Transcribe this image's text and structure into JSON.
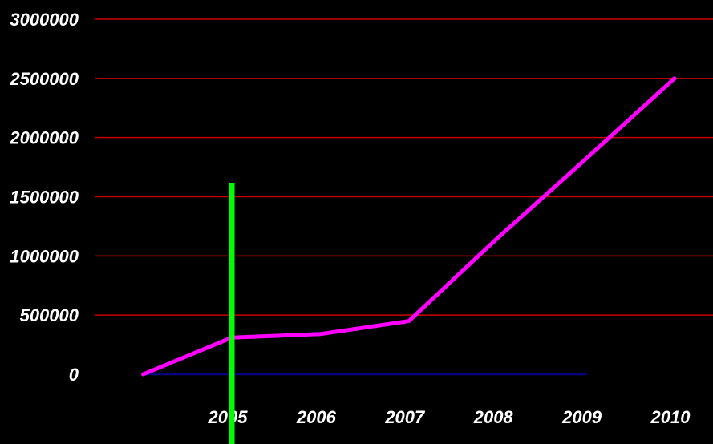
{
  "chart_data": {
    "type": "line",
    "title": "",
    "xlabel": "",
    "ylabel": "",
    "x_tick_labels": [
      "2005",
      "2006",
      "2007",
      "2008",
      "2009",
      "2010"
    ],
    "y_tick_labels": [
      "0",
      "500000",
      "1000000",
      "1500000",
      "2000000",
      "2500000",
      "3000000"
    ],
    "ylim": [
      0,
      3000000
    ],
    "grid": true,
    "legend": "none",
    "series": [
      {
        "x": [
          2004,
          2005,
          2006,
          2007,
          2008,
          2009,
          2010
        ],
        "values": [
          0,
          310000,
          340000,
          450000,
          1150000,
          1820000,
          2500000
        ],
        "color": "#ff00ff"
      },
      {
        "x": [
          2004,
          2009
        ],
        "values": [
          0,
          0
        ],
        "color": "#000080"
      }
    ],
    "marker_line": {
      "x": 2005,
      "color": "#00ff00"
    },
    "colors": {
      "background": "#000000",
      "grid": "#cc0000",
      "text": "#ffffff"
    }
  }
}
